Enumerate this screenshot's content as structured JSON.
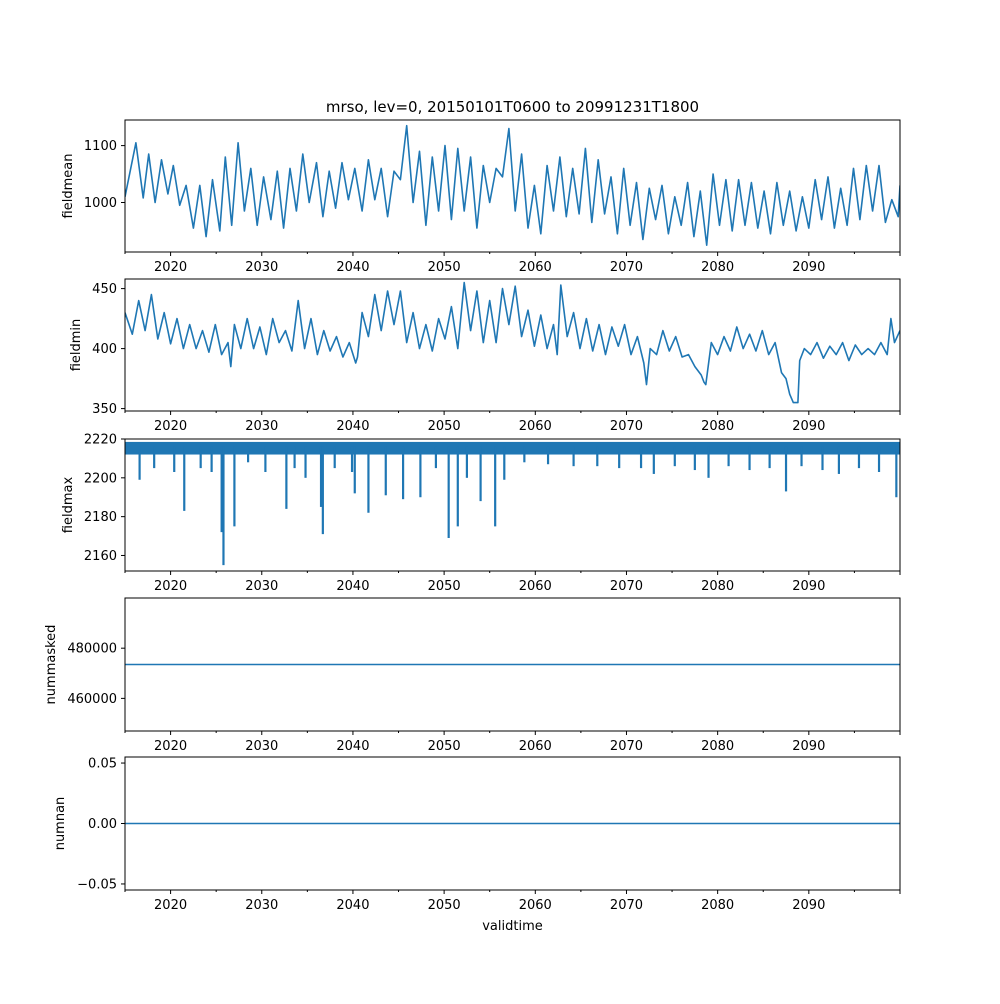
{
  "title": "mrso, lev=0, 20150101T0600 to 20991231T1800",
  "xlabel": "validtime",
  "line_color": "#1f77b4",
  "chart_data": [
    {
      "type": "line",
      "ylabel": "fieldmean",
      "xlim": [
        2015.0,
        2100.0
      ],
      "ylim": [
        913,
        1145
      ],
      "x_ticks": [
        2020,
        2030,
        2040,
        2050,
        2060,
        2070,
        2080,
        2090
      ],
      "x_tick_labels": [
        "2020",
        "2030",
        "2040",
        "2050",
        "2060",
        "2070",
        "2080",
        "2090"
      ],
      "y_ticks": [
        1000,
        1100
      ],
      "y_tick_labels": [
        "1000",
        "1100"
      ],
      "x": [
        2015.0,
        2016.2,
        2017.0,
        2017.6,
        2018.3,
        2019.0,
        2019.7,
        2020.3,
        2021.0,
        2021.7,
        2022.5,
        2023.2,
        2023.9,
        2024.6,
        2025.4,
        2026.0,
        2026.7,
        2027.4,
        2028.1,
        2028.8,
        2029.5,
        2030.2,
        2031.0,
        2031.7,
        2032.4,
        2033.1,
        2033.8,
        2034.5,
        2035.2,
        2036.0,
        2036.7,
        2037.4,
        2038.1,
        2038.8,
        2039.5,
        2040.2,
        2041.0,
        2041.7,
        2042.4,
        2043.1,
        2043.8,
        2044.5,
        2045.2,
        2045.9,
        2046.6,
        2047.3,
        2048.0,
        2048.7,
        2049.4,
        2050.1,
        2050.8,
        2051.5,
        2052.2,
        2052.9,
        2053.6,
        2054.3,
        2055.0,
        2055.7,
        2056.4,
        2057.1,
        2057.8,
        2058.5,
        2059.2,
        2059.9,
        2060.6,
        2061.3,
        2062.0,
        2062.7,
        2063.4,
        2064.1,
        2064.8,
        2065.5,
        2066.2,
        2066.9,
        2067.6,
        2068.3,
        2069.0,
        2069.7,
        2070.4,
        2071.1,
        2071.8,
        2072.5,
        2073.2,
        2073.9,
        2074.6,
        2075.3,
        2076.0,
        2076.7,
        2077.4,
        2078.1,
        2078.8,
        2079.5,
        2080.2,
        2080.9,
        2081.6,
        2082.3,
        2083.0,
        2083.7,
        2084.4,
        2085.1,
        2085.8,
        2086.5,
        2087.2,
        2087.9,
        2088.6,
        2089.3,
        2090.0,
        2090.7,
        2091.4,
        2092.1,
        2092.8,
        2093.5,
        2094.2,
        2094.9,
        2095.6,
        2096.3,
        2097.0,
        2097.7,
        2098.4,
        2099.1,
        2099.8,
        2100.0
      ],
      "values": [
        1010,
        1105,
        1008,
        1085,
        1000,
        1075,
        1015,
        1065,
        995,
        1030,
        955,
        1030,
        940,
        1040,
        950,
        1080,
        960,
        1105,
        985,
        1060,
        960,
        1045,
        970,
        1055,
        955,
        1060,
        985,
        1085,
        1000,
        1070,
        975,
        1055,
        990,
        1070,
        1005,
        1060,
        985,
        1075,
        1005,
        1060,
        975,
        1055,
        1040,
        1135,
        1000,
        1090,
        960,
        1080,
        985,
        1100,
        970,
        1095,
        985,
        1080,
        955,
        1065,
        1000,
        1060,
        1045,
        1130,
        985,
        1085,
        955,
        1030,
        945,
        1065,
        985,
        1080,
        975,
        1060,
        980,
        1095,
        965,
        1075,
        980,
        1045,
        945,
        1060,
        960,
        1035,
        935,
        1025,
        970,
        1030,
        945,
        1010,
        960,
        1035,
        940,
        1020,
        925,
        1050,
        960,
        1040,
        950,
        1040,
        960,
        1035,
        955,
        1020,
        945,
        1035,
        960,
        1020,
        950,
        1010,
        955,
        1040,
        970,
        1045,
        955,
        1025,
        960,
        1060,
        970,
        1065,
        985,
        1065,
        965,
        1005,
        975,
        1030
      ]
    },
    {
      "type": "line",
      "ylabel": "fieldmin",
      "xlim": [
        2015.0,
        2100.0
      ],
      "ylim": [
        348,
        458
      ],
      "x_ticks": [
        2020,
        2030,
        2040,
        2050,
        2060,
        2070,
        2080,
        2090
      ],
      "x_tick_labels": [
        "2020",
        "2030",
        "2040",
        "2050",
        "2060",
        "2070",
        "2080",
        "2090"
      ],
      "y_ticks": [
        350,
        400,
        450
      ],
      "y_tick_labels": [
        "350",
        "400",
        "450"
      ],
      "x": [
        2015.0,
        2015.8,
        2016.5,
        2017.2,
        2017.9,
        2018.6,
        2019.3,
        2020.0,
        2020.7,
        2021.4,
        2022.1,
        2022.8,
        2023.5,
        2024.2,
        2024.9,
        2025.6,
        2026.3,
        2026.6,
        2027.0,
        2027.7,
        2028.4,
        2029.1,
        2029.8,
        2030.5,
        2031.2,
        2031.9,
        2032.6,
        2033.3,
        2034.0,
        2034.7,
        2035.4,
        2036.1,
        2036.8,
        2037.5,
        2038.2,
        2038.9,
        2039.6,
        2040.3,
        2040.5,
        2041.0,
        2041.7,
        2042.4,
        2043.1,
        2043.8,
        2044.5,
        2045.2,
        2045.9,
        2046.6,
        2047.3,
        2048.0,
        2048.7,
        2049.4,
        2050.1,
        2050.8,
        2051.5,
        2052.2,
        2052.9,
        2053.6,
        2054.3,
        2055.0,
        2055.7,
        2056.4,
        2057.1,
        2057.8,
        2058.5,
        2059.2,
        2059.9,
        2060.6,
        2061.3,
        2062.0,
        2062.4,
        2062.8,
        2063.5,
        2064.2,
        2064.9,
        2065.6,
        2066.3,
        2067.0,
        2067.7,
        2068.4,
        2069.1,
        2069.8,
        2070.5,
        2071.2,
        2071.9,
        2072.2,
        2072.6,
        2073.3,
        2074.0,
        2074.7,
        2075.4,
        2076.1,
        2076.8,
        2077.5,
        2078.2,
        2078.5,
        2078.7,
        2079.3,
        2080.0,
        2080.7,
        2081.4,
        2082.1,
        2082.8,
        2083.5,
        2084.2,
        2084.9,
        2085.6,
        2086.3,
        2087.0,
        2087.5,
        2087.9,
        2088.3,
        2088.8,
        2089.0,
        2089.5,
        2090.2,
        2090.9,
        2091.6,
        2092.3,
        2093.0,
        2093.7,
        2094.4,
        2095.1,
        2095.8,
        2096.5,
        2097.2,
        2097.9,
        2098.6,
        2099.0,
        2099.4,
        2100.0
      ],
      "values": [
        430,
        412,
        440,
        415,
        445,
        408,
        430,
        404,
        425,
        400,
        420,
        400,
        415,
        397,
        420,
        395,
        405,
        385,
        420,
        400,
        425,
        400,
        418,
        395,
        425,
        405,
        415,
        398,
        440,
        400,
        425,
        395,
        415,
        398,
        410,
        393,
        405,
        388,
        393,
        430,
        410,
        445,
        415,
        448,
        420,
        448,
        405,
        430,
        400,
        420,
        398,
        425,
        408,
        435,
        400,
        455,
        415,
        448,
        405,
        440,
        405,
        450,
        420,
        452,
        410,
        432,
        402,
        428,
        400,
        420,
        395,
        453,
        410,
        430,
        400,
        425,
        398,
        420,
        395,
        418,
        402,
        420,
        395,
        410,
        388,
        370,
        400,
        395,
        415,
        398,
        410,
        393,
        395,
        385,
        378,
        372,
        370,
        405,
        395,
        410,
        398,
        418,
        400,
        412,
        398,
        415,
        395,
        405,
        380,
        375,
        362,
        355,
        355,
        390,
        400,
        395,
        405,
        392,
        402,
        395,
        405,
        390,
        403,
        395,
        400,
        395,
        405,
        395,
        425,
        405,
        415
      ]
    },
    {
      "type": "line",
      "ylabel": "fieldmax",
      "xlim": [
        2015.0,
        2100.0
      ],
      "ylim": [
        2152,
        2220
      ],
      "x_ticks": [
        2020,
        2030,
        2040,
        2050,
        2060,
        2070,
        2080,
        2090
      ],
      "x_tick_labels": [
        "2020",
        "2030",
        "2040",
        "2050",
        "2060",
        "2070",
        "2080",
        "2090"
      ],
      "y_ticks": [
        2160,
        2180,
        2200,
        2220
      ],
      "y_tick_labels": [
        "2160",
        "2180",
        "2200",
        "2220"
      ],
      "baseline": 2216,
      "band_low": 2212,
      "spikes": [
        {
          "x": 2016.6,
          "value": 2199
        },
        {
          "x": 2018.2,
          "value": 2205
        },
        {
          "x": 2020.4,
          "value": 2203
        },
        {
          "x": 2021.5,
          "value": 2183
        },
        {
          "x": 2023.3,
          "value": 2205
        },
        {
          "x": 2024.5,
          "value": 2203
        },
        {
          "x": 2025.6,
          "value": 2172
        },
        {
          "x": 2025.8,
          "value": 2155
        },
        {
          "x": 2027.0,
          "value": 2175
        },
        {
          "x": 2028.5,
          "value": 2208
        },
        {
          "x": 2030.4,
          "value": 2203
        },
        {
          "x": 2032.7,
          "value": 2184
        },
        {
          "x": 2033.6,
          "value": 2205
        },
        {
          "x": 2034.8,
          "value": 2200
        },
        {
          "x": 2036.5,
          "value": 2185
        },
        {
          "x": 2036.7,
          "value": 2171
        },
        {
          "x": 2038.0,
          "value": 2205
        },
        {
          "x": 2039.9,
          "value": 2203
        },
        {
          "x": 2040.2,
          "value": 2192
        },
        {
          "x": 2041.7,
          "value": 2182
        },
        {
          "x": 2043.6,
          "value": 2191
        },
        {
          "x": 2045.5,
          "value": 2189
        },
        {
          "x": 2047.4,
          "value": 2190
        },
        {
          "x": 2049.1,
          "value": 2205
        },
        {
          "x": 2050.5,
          "value": 2169
        },
        {
          "x": 2051.5,
          "value": 2175
        },
        {
          "x": 2052.5,
          "value": 2200
        },
        {
          "x": 2054.0,
          "value": 2188
        },
        {
          "x": 2055.6,
          "value": 2175
        },
        {
          "x": 2056.6,
          "value": 2199
        },
        {
          "x": 2058.8,
          "value": 2208
        },
        {
          "x": 2061.4,
          "value": 2207
        },
        {
          "x": 2064.2,
          "value": 2206
        },
        {
          "x": 2066.8,
          "value": 2206
        },
        {
          "x": 2069.2,
          "value": 2205
        },
        {
          "x": 2071.6,
          "value": 2205
        },
        {
          "x": 2073.0,
          "value": 2202
        },
        {
          "x": 2075.3,
          "value": 2206
        },
        {
          "x": 2077.5,
          "value": 2204
        },
        {
          "x": 2079.0,
          "value": 2200
        },
        {
          "x": 2081.2,
          "value": 2206
        },
        {
          "x": 2083.5,
          "value": 2204
        },
        {
          "x": 2085.7,
          "value": 2205
        },
        {
          "x": 2087.5,
          "value": 2193
        },
        {
          "x": 2089.2,
          "value": 2206
        },
        {
          "x": 2091.5,
          "value": 2204
        },
        {
          "x": 2093.3,
          "value": 2202
        },
        {
          "x": 2095.5,
          "value": 2205
        },
        {
          "x": 2097.7,
          "value": 2203
        },
        {
          "x": 2099.6,
          "value": 2190
        }
      ]
    },
    {
      "type": "line",
      "ylabel": "nummasked",
      "xlim": [
        2015.0,
        2100.0
      ],
      "ylim": [
        447000,
        500000
      ],
      "x_ticks": [
        2020,
        2030,
        2040,
        2050,
        2060,
        2070,
        2080,
        2090
      ],
      "x_tick_labels": [
        "2020",
        "2030",
        "2040",
        "2050",
        "2060",
        "2070",
        "2080",
        "2090"
      ],
      "y_ticks": [
        460000,
        480000
      ],
      "y_tick_labels": [
        "460000",
        "480000"
      ],
      "x": [
        2015.0,
        2100.0
      ],
      "values": [
        473500,
        473500
      ]
    },
    {
      "type": "line",
      "ylabel": "numnan",
      "xlim": [
        2015.0,
        2100.0
      ],
      "ylim": [
        -0.055,
        0.055
      ],
      "x_ticks": [
        2020,
        2030,
        2040,
        2050,
        2060,
        2070,
        2080,
        2090
      ],
      "x_tick_labels": [
        "2020",
        "2030",
        "2040",
        "2050",
        "2060",
        "2070",
        "2080",
        "2090"
      ],
      "y_ticks": [
        -0.05,
        0.0,
        0.05
      ],
      "y_tick_labels": [
        "−0.05",
        "0.00",
        "0.05"
      ],
      "x": [
        2015.0,
        2100.0
      ],
      "values": [
        0.0,
        0.0
      ]
    }
  ]
}
